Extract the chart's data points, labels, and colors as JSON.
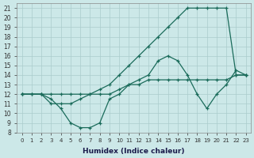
{
  "xlabel": "Humidex (Indice chaleur)",
  "bg_color": "#cce8e8",
  "line_color": "#1a6b5a",
  "grid_color": "#aacccc",
  "xlim": [
    -0.5,
    23.5
  ],
  "ylim": [
    8,
    21.5
  ],
  "xticks": [
    0,
    1,
    2,
    3,
    4,
    5,
    6,
    7,
    8,
    9,
    10,
    11,
    12,
    13,
    14,
    15,
    16,
    17,
    18,
    19,
    20,
    21,
    22,
    23
  ],
  "yticks": [
    8,
    9,
    10,
    11,
    12,
    13,
    14,
    15,
    16,
    17,
    18,
    19,
    20,
    21
  ],
  "line1_x": [
    0,
    1,
    2,
    3,
    4,
    5,
    6,
    7,
    8,
    9,
    10,
    11,
    12,
    13,
    14,
    15,
    16,
    17,
    18,
    19,
    20,
    21,
    22,
    23
  ],
  "line1_y": [
    12,
    12,
    12,
    11,
    11,
    11,
    11.5,
    12,
    12.5,
    13,
    14,
    15,
    16,
    17,
    18,
    19,
    20,
    21,
    21,
    21,
    21,
    21,
    14,
    14
  ],
  "line2_x": [
    0,
    1,
    2,
    3,
    4,
    5,
    6,
    7,
    8,
    9,
    10,
    11,
    12,
    13,
    14,
    15,
    16,
    17,
    18,
    19,
    20,
    21,
    22,
    23
  ],
  "line2_y": [
    12,
    12,
    12,
    11.5,
    10.5,
    9,
    8.5,
    8.5,
    9,
    11.5,
    12,
    13,
    13.5,
    14,
    15.5,
    16,
    15.5,
    14,
    12,
    10.5,
    12,
    13,
    14.5,
    14
  ],
  "line3_x": [
    0,
    2,
    3,
    4,
    5,
    6,
    7,
    8,
    9,
    10,
    11,
    12,
    13,
    14,
    15,
    16,
    17,
    18,
    19,
    20,
    21,
    22,
    23
  ],
  "line3_y": [
    12,
    12,
    12,
    12,
    12,
    12,
    12,
    12,
    12,
    12.5,
    13,
    13,
    13.5,
    13.5,
    13.5,
    13.5,
    13.5,
    13.5,
    13.5,
    13.5,
    13.5,
    14,
    14
  ]
}
